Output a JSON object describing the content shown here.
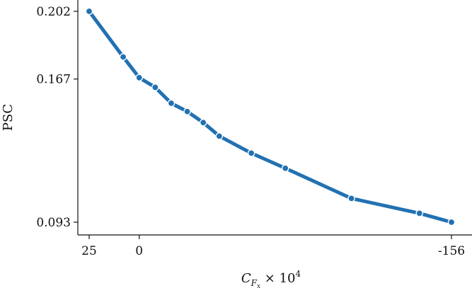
{
  "chart_data": {
    "type": "line",
    "ylabel": "PSC",
    "xlabel": {
      "base": "C",
      "subscript": "F",
      "subsubscript": "x",
      "suffix": " × 10",
      "superscript": "4"
    },
    "x_axis": "reversed",
    "grid": false,
    "legend": "none",
    "line_color": "#2271b2",
    "xlim": [
      25,
      -156
    ],
    "ylim": [
      0.093,
      0.202
    ],
    "x_ticks": [
      {
        "value": 25,
        "label": "25"
      },
      {
        "value": 0,
        "label": "0"
      },
      {
        "value": -156,
        "label": "-156"
      }
    ],
    "y_ticks": [
      {
        "value": 0.202,
        "label": "0.202"
      },
      {
        "value": 0.167,
        "label": "0.167"
      },
      {
        "value": 0.093,
        "label": "0.093"
      }
    ],
    "series": [
      {
        "x": [
          25,
          8,
          0,
          -8,
          -16,
          -24,
          -32,
          -40,
          -56,
          -73,
          -106,
          -140,
          -156
        ],
        "y": [
          0.202,
          0.1784,
          0.1677,
          0.1627,
          0.1545,
          0.1502,
          0.1445,
          0.1375,
          0.1287,
          0.1209,
          0.1053,
          0.0976,
          0.093
        ]
      }
    ]
  }
}
